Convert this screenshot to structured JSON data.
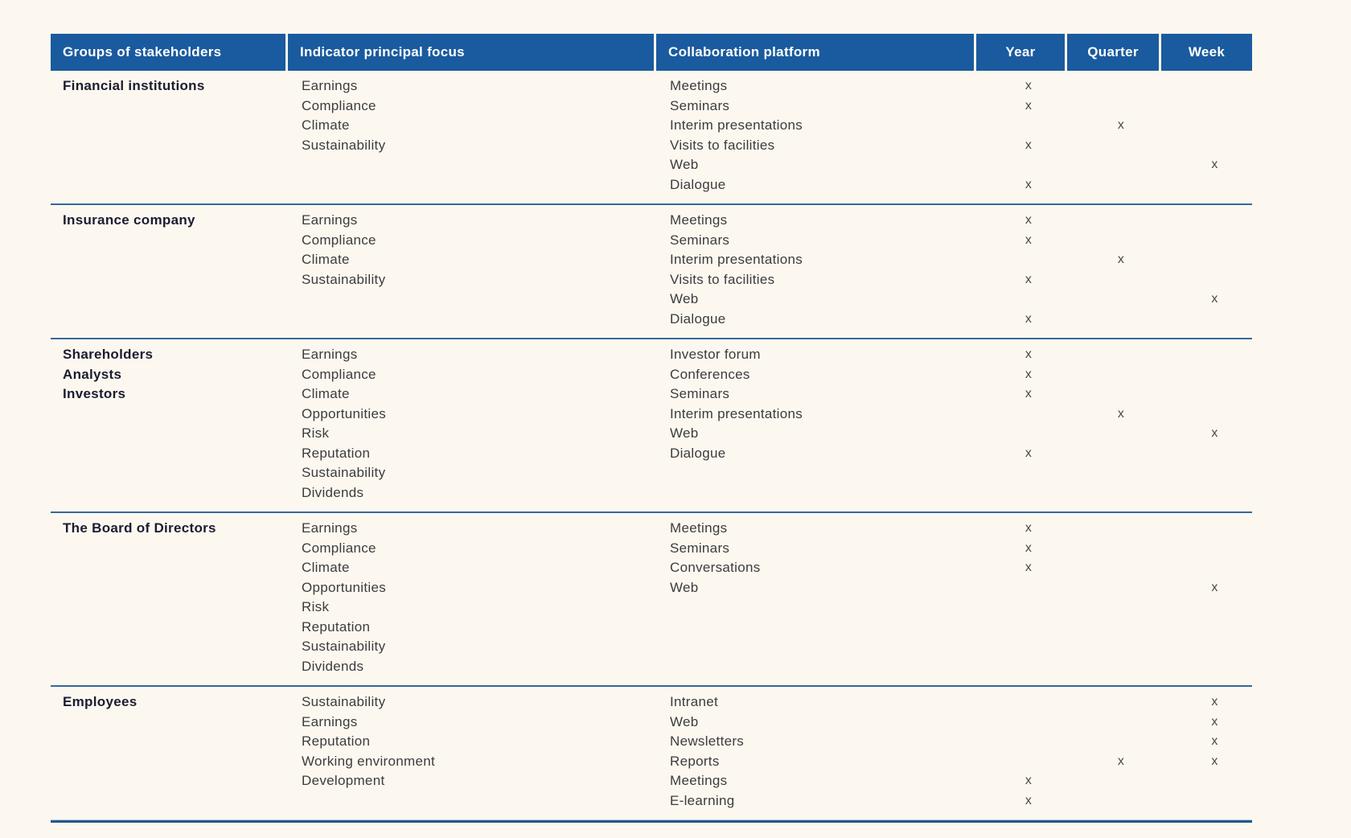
{
  "theme": {
    "header_bg": "#1a5a9e",
    "header_text": "#ffffff",
    "separator_color": "#35699c",
    "bottom_border_color": "#235a88",
    "page_background": "#fcf8f0",
    "body_text_color": "#3c3c3c",
    "group_text_color": "#1c1c30"
  },
  "table": {
    "mark_symbol": "x",
    "columns": [
      {
        "label": "Groups of stakeholders",
        "align": "left"
      },
      {
        "label": "Indicator principal focus",
        "align": "left"
      },
      {
        "label": "Collaboration platform",
        "align": "left"
      },
      {
        "label": "Year",
        "align": "center"
      },
      {
        "label": "Quarter",
        "align": "center"
      },
      {
        "label": "Week",
        "align": "center"
      }
    ],
    "groups": [
      {
        "stakeholders": [
          "Financial institutions"
        ],
        "indicators": [
          "Earnings",
          "Compliance",
          "Climate",
          "Sustainability"
        ],
        "platforms": [
          {
            "name": "Meetings",
            "year": "x",
            "quarter": "",
            "week": ""
          },
          {
            "name": "Seminars",
            "year": "x",
            "quarter": "",
            "week": ""
          },
          {
            "name": "Interim presentations",
            "year": "",
            "quarter": "x",
            "week": ""
          },
          {
            "name": "Visits to facilities",
            "year": "x",
            "quarter": "",
            "week": ""
          },
          {
            "name": "Web",
            "year": "",
            "quarter": "",
            "week": "x"
          },
          {
            "name": "Dialogue",
            "year": "x",
            "quarter": "",
            "week": ""
          }
        ]
      },
      {
        "stakeholders": [
          "Insurance company"
        ],
        "indicators": [
          "Earnings",
          "Compliance",
          "Climate",
          "Sustainability"
        ],
        "platforms": [
          {
            "name": "Meetings",
            "year": "x",
            "quarter": "",
            "week": ""
          },
          {
            "name": "Seminars",
            "year": "x",
            "quarter": "",
            "week": ""
          },
          {
            "name": "Interim presentations",
            "year": "",
            "quarter": "x",
            "week": ""
          },
          {
            "name": "Visits to facilities",
            "year": "x",
            "quarter": "",
            "week": ""
          },
          {
            "name": "Web",
            "year": "",
            "quarter": "",
            "week": "x"
          },
          {
            "name": "Dialogue",
            "year": "x",
            "quarter": "",
            "week": ""
          }
        ]
      },
      {
        "stakeholders": [
          "Shareholders",
          "Analysts",
          "Investors"
        ],
        "indicators": [
          "Earnings",
          "Compliance",
          "Climate",
          "Opportunities",
          "Risk",
          "Reputation",
          "Sustainability",
          "Dividends"
        ],
        "platforms": [
          {
            "name": "Investor forum",
            "year": "x",
            "quarter": "",
            "week": ""
          },
          {
            "name": "Conferences",
            "year": "x",
            "quarter": "",
            "week": ""
          },
          {
            "name": "Seminars",
            "year": "x",
            "quarter": "",
            "week": ""
          },
          {
            "name": "Interim presentations",
            "year": "",
            "quarter": "x",
            "week": ""
          },
          {
            "name": "Web",
            "year": "",
            "quarter": "",
            "week": "x"
          },
          {
            "name": "Dialogue",
            "year": "x",
            "quarter": "",
            "week": ""
          }
        ]
      },
      {
        "stakeholders": [
          "The Board of Directors"
        ],
        "indicators": [
          "Earnings",
          "Compliance",
          "Climate",
          "Opportunities",
          "Risk",
          "Reputation",
          "Sustainability",
          "Dividends"
        ],
        "platforms": [
          {
            "name": "Meetings",
            "year": "x",
            "quarter": "",
            "week": ""
          },
          {
            "name": "Seminars",
            "year": "x",
            "quarter": "",
            "week": ""
          },
          {
            "name": "Conversations",
            "year": "x",
            "quarter": "",
            "week": ""
          },
          {
            "name": "Web",
            "year": "",
            "quarter": "",
            "week": "x"
          }
        ]
      },
      {
        "stakeholders": [
          "Employees"
        ],
        "indicators": [
          "Sustainability",
          "Earnings",
          "Reputation",
          "Working environment",
          "Development"
        ],
        "platforms": [
          {
            "name": "Intranet",
            "year": "",
            "quarter": "",
            "week": "x"
          },
          {
            "name": "Web",
            "year": "",
            "quarter": "",
            "week": "x"
          },
          {
            "name": "Newsletters",
            "year": "",
            "quarter": "",
            "week": "x"
          },
          {
            "name": "Reports",
            "year": "",
            "quarter": "x",
            "week": "x"
          },
          {
            "name": "Meetings",
            "year": "x",
            "quarter": "",
            "week": ""
          },
          {
            "name": "E-learning",
            "year": "x",
            "quarter": "",
            "week": ""
          }
        ]
      }
    ]
  }
}
